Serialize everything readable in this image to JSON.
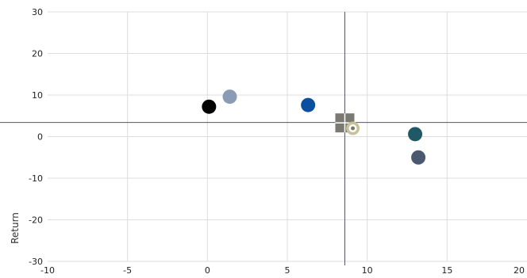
{
  "chart_data": {
    "type": "scatter",
    "title": "",
    "xlabel": "",
    "ylabel": "Return",
    "xlim": [
      -10,
      20
    ],
    "ylim": [
      -30,
      30
    ],
    "x_ticks": [
      "-10",
      "-5",
      "0",
      "5",
      "10",
      "15",
      "20"
    ],
    "y_ticks": [
      "30",
      "20",
      "10",
      "0",
      "-10",
      "-20",
      "-30"
    ],
    "grid": true,
    "crosshair": {
      "x": 8.6,
      "y": 3.4
    },
    "series": [
      {
        "x": 0.1,
        "y": 7.2,
        "color": "#000000",
        "marker": "circle"
      },
      {
        "x": 1.4,
        "y": 9.6,
        "color": "#8a9bb5",
        "marker": "circle"
      },
      {
        "x": 6.3,
        "y": 7.6,
        "color": "#0b4fa0",
        "marker": "circle"
      },
      {
        "x": 8.6,
        "y": 3.3,
        "color": "#7a7a72",
        "marker": "square-cross"
      },
      {
        "x": 9.1,
        "y": 2.0,
        "color": "#c8c29a",
        "marker": "target"
      },
      {
        "x": 13.0,
        "y": 0.6,
        "color": "#1f5966",
        "marker": "circle"
      },
      {
        "x": 13.2,
        "y": -5.0,
        "color": "#4a5870",
        "marker": "circle"
      }
    ]
  }
}
